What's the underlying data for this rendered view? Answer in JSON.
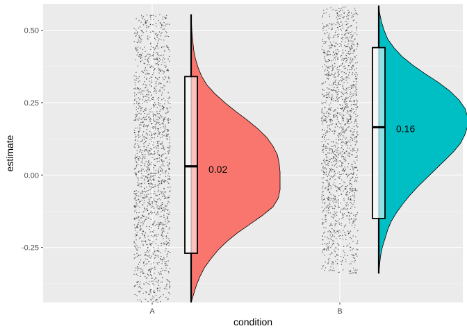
{
  "chart_data": {
    "type": "raincloud",
    "title": "",
    "xlabel": "condition",
    "ylabel": "estimate",
    "categories": [
      "A",
      "B"
    ],
    "ylim": [
      -0.44,
      0.59
    ],
    "yticks": [
      -0.25,
      0.0,
      0.25,
      0.5
    ],
    "ytick_labels": [
      "-0.25",
      "0.00",
      "0.25",
      "0.50"
    ],
    "grid": true,
    "legend": "none",
    "background": "#ebebeb",
    "groups": [
      {
        "name": "A",
        "color": "#f8766d",
        "box": {
          "q1": -0.27,
          "median": 0.03,
          "q3": 0.34,
          "min": -0.44,
          "max": 0.555
        },
        "mean_label": "0.02",
        "mean_value": 0.02,
        "points_range": [
          -0.44,
          0.555
        ],
        "density": {
          "y": [
            -0.44,
            -0.41,
            -0.38,
            -0.35,
            -0.32,
            -0.29,
            -0.26,
            -0.23,
            -0.2,
            -0.17,
            -0.14,
            -0.11,
            -0.08,
            -0.05,
            -0.02,
            0.01,
            0.04,
            0.07,
            0.1,
            0.13,
            0.16,
            0.19,
            0.22,
            0.25,
            0.28,
            0.31,
            0.34,
            0.37,
            0.4,
            0.43,
            0.46,
            0.49,
            0.52,
            0.555
          ],
          "d": [
            0.0,
            0.03,
            0.06,
            0.1,
            0.15,
            0.22,
            0.3,
            0.4,
            0.52,
            0.66,
            0.8,
            0.92,
            0.98,
            1.0,
            1.0,
            1.0,
            0.99,
            0.97,
            0.92,
            0.85,
            0.75,
            0.63,
            0.5,
            0.38,
            0.27,
            0.18,
            0.12,
            0.08,
            0.05,
            0.03,
            0.02,
            0.01,
            0.005,
            0.0
          ]
        }
      },
      {
        "name": "B",
        "color": "#00bfc4",
        "box": {
          "q1": -0.15,
          "median": 0.165,
          "q3": 0.44,
          "min": -0.34,
          "max": 0.585
        },
        "mean_label": "0.16",
        "mean_value": 0.16,
        "points_range": [
          -0.34,
          0.585
        ],
        "density": {
          "y": [
            -0.34,
            -0.31,
            -0.28,
            -0.25,
            -0.22,
            -0.19,
            -0.16,
            -0.13,
            -0.1,
            -0.07,
            -0.04,
            -0.01,
            0.02,
            0.05,
            0.08,
            0.11,
            0.14,
            0.17,
            0.2,
            0.23,
            0.26,
            0.29,
            0.32,
            0.35,
            0.38,
            0.41,
            0.44,
            0.47,
            0.5,
            0.53,
            0.56,
            0.585
          ],
          "d": [
            0.0,
            0.01,
            0.02,
            0.04,
            0.07,
            0.1,
            0.14,
            0.2,
            0.27,
            0.35,
            0.44,
            0.54,
            0.64,
            0.74,
            0.84,
            0.92,
            0.97,
            1.0,
            1.0,
            0.97,
            0.9,
            0.8,
            0.67,
            0.52,
            0.38,
            0.26,
            0.17,
            0.1,
            0.06,
            0.03,
            0.01,
            0.0
          ]
        }
      }
    ]
  }
}
